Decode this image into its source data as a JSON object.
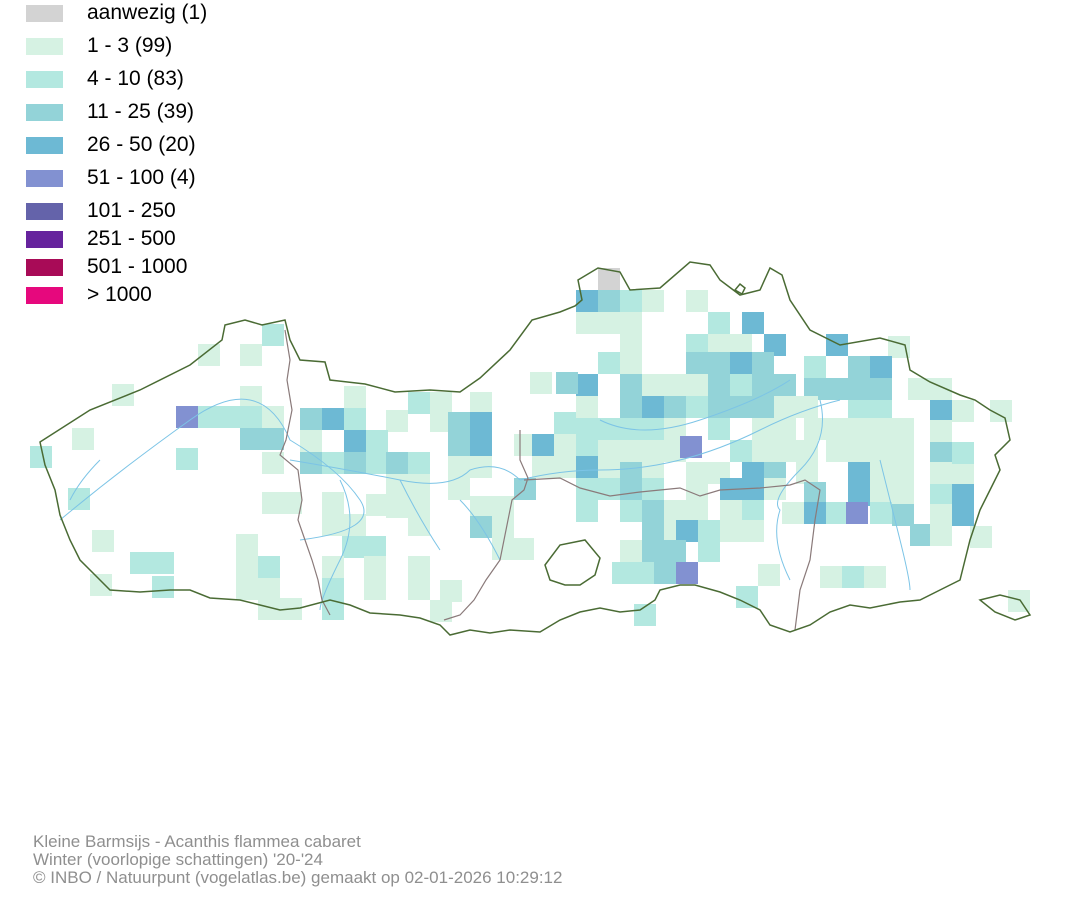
{
  "legend": [
    {
      "label": "aanwezig (1)",
      "color": "#d3d3d3"
    },
    {
      "label": "1 - 3 (99)",
      "color": "#d6f2e3"
    },
    {
      "label": "4 - 10 (83)",
      "color": "#b3e8e0"
    },
    {
      "label": "11 - 25 (39)",
      "color": "#93d3d8"
    },
    {
      "label": "26 - 50 (20)",
      "color": "#6db9d4"
    },
    {
      "label": "51 - 100 (4)",
      "color": "#8291d1"
    },
    {
      "label": "101 - 250",
      "color": "#6463aa"
    },
    {
      "label": "251 - 500",
      "color": "#66239d"
    },
    {
      "label": "501 - 1000",
      "color": "#a80b57"
    },
    {
      "label": "> 1000",
      "color": "#e6087d"
    }
  ],
  "map": {
    "border_color": "#4a6b34",
    "province_border_color": "#8a7a7a",
    "river_color": "#7cc4e6"
  },
  "footer": {
    "line1": "Kleine Barmsijs - Acanthis flammea cabaret",
    "line2": "Winter (voorlopige schattingen) '20-'24",
    "line3": "© INBO / Natuurpunt (vogelatlas.be) gemaakt op 02-01-2026 10:29:12"
  }
}
